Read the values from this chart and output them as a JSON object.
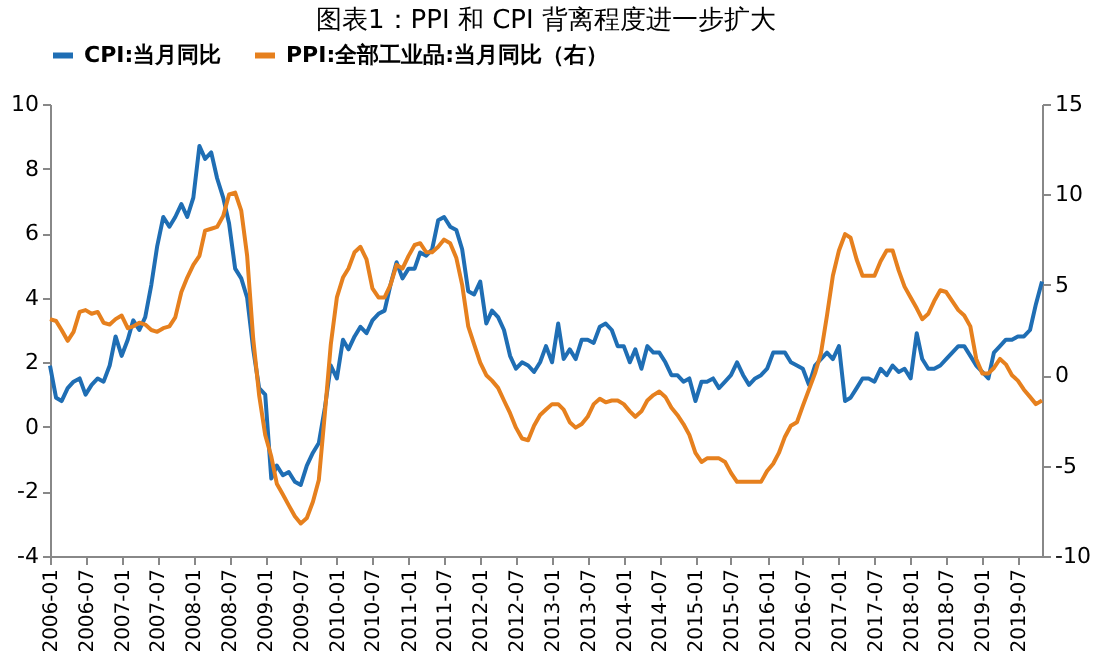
{
  "chart_data": {
    "type": "line",
    "title": "图表1：PPI 和 CPI 背离程度进一步扩大",
    "x": [
      "2006-01",
      "2006-02",
      "2006-03",
      "2006-04",
      "2006-05",
      "2006-06",
      "2006-07",
      "2006-08",
      "2006-09",
      "2006-10",
      "2006-11",
      "2006-12",
      "2007-01",
      "2007-02",
      "2007-03",
      "2007-04",
      "2007-05",
      "2007-06",
      "2007-07",
      "2007-08",
      "2007-09",
      "2007-10",
      "2007-11",
      "2007-12",
      "2008-01",
      "2008-02",
      "2008-03",
      "2008-04",
      "2008-05",
      "2008-06",
      "2008-07",
      "2008-08",
      "2008-09",
      "2008-10",
      "2008-11",
      "2008-12",
      "2009-01",
      "2009-02",
      "2009-03",
      "2009-04",
      "2009-05",
      "2009-06",
      "2009-07",
      "2009-08",
      "2009-09",
      "2009-10",
      "2009-11",
      "2009-12",
      "2010-01",
      "2010-02",
      "2010-03",
      "2010-04",
      "2010-05",
      "2010-06",
      "2010-07",
      "2010-08",
      "2010-09",
      "2010-10",
      "2010-11",
      "2010-12",
      "2011-01",
      "2011-02",
      "2011-03",
      "2011-04",
      "2011-05",
      "2011-06",
      "2011-07",
      "2011-08",
      "2011-09",
      "2011-10",
      "2011-11",
      "2011-12",
      "2012-01",
      "2012-02",
      "2012-03",
      "2012-04",
      "2012-05",
      "2012-06",
      "2012-07",
      "2012-08",
      "2012-09",
      "2012-10",
      "2012-11",
      "2012-12",
      "2013-01",
      "2013-02",
      "2013-03",
      "2013-04",
      "2013-05",
      "2013-06",
      "2013-07",
      "2013-08",
      "2013-09",
      "2013-10",
      "2013-11",
      "2013-12",
      "2014-01",
      "2014-02",
      "2014-03",
      "2014-04",
      "2014-05",
      "2014-06",
      "2014-07",
      "2014-08",
      "2014-09",
      "2014-10",
      "2014-11",
      "2014-12",
      "2015-01",
      "2015-02",
      "2015-03",
      "2015-04",
      "2015-05",
      "2015-06",
      "2015-07",
      "2015-08",
      "2015-09",
      "2015-10",
      "2015-11",
      "2015-12",
      "2016-01",
      "2016-02",
      "2016-03",
      "2016-04",
      "2016-05",
      "2016-06",
      "2016-07",
      "2016-08",
      "2016-09",
      "2016-10",
      "2016-11",
      "2016-12",
      "2017-01",
      "2017-02",
      "2017-03",
      "2017-04",
      "2017-05",
      "2017-06",
      "2017-07",
      "2017-08",
      "2017-09",
      "2017-10",
      "2017-11",
      "2017-12",
      "2018-01",
      "2018-02",
      "2018-03",
      "2018-04",
      "2018-05",
      "2018-06",
      "2018-07",
      "2018-08",
      "2018-09",
      "2018-10",
      "2018-11",
      "2018-12",
      "2019-01",
      "2019-02",
      "2019-03",
      "2019-04",
      "2019-05",
      "2019-06",
      "2019-07",
      "2019-08",
      "2019-09",
      "2019-10",
      "2019-11"
    ],
    "series": [
      {
        "name": "CPI:当月同比",
        "color": "#1f6eb4",
        "axis": "y",
        "values": [
          1.9,
          0.9,
          0.8,
          1.2,
          1.4,
          1.5,
          1.0,
          1.3,
          1.5,
          1.4,
          1.9,
          2.8,
          2.2,
          2.7,
          3.3,
          3.0,
          3.4,
          4.4,
          5.6,
          6.5,
          6.2,
          6.5,
          6.9,
          6.5,
          7.1,
          8.7,
          8.3,
          8.5,
          7.7,
          7.1,
          6.3,
          4.9,
          4.6,
          4.0,
          2.4,
          1.2,
          1.0,
          -1.6,
          -1.2,
          -1.5,
          -1.4,
          -1.7,
          -1.8,
          -1.2,
          -0.8,
          -0.5,
          0.6,
          1.9,
          1.5,
          2.7,
          2.4,
          2.8,
          3.1,
          2.9,
          3.3,
          3.5,
          3.6,
          4.4,
          5.1,
          4.6,
          4.9,
          4.9,
          5.4,
          5.3,
          5.5,
          6.4,
          6.5,
          6.2,
          6.1,
          5.5,
          4.2,
          4.1,
          4.5,
          3.2,
          3.6,
          3.4,
          3.0,
          2.2,
          1.8,
          2.0,
          1.9,
          1.7,
          2.0,
          2.5,
          2.0,
          3.2,
          2.1,
          2.4,
          2.1,
          2.7,
          2.7,
          2.6,
          3.1,
          3.2,
          3.0,
          2.5,
          2.5,
          2.0,
          2.4,
          1.8,
          2.5,
          2.3,
          2.3,
          2.0,
          1.6,
          1.6,
          1.4,
          1.5,
          0.8,
          1.4,
          1.4,
          1.5,
          1.2,
          1.4,
          1.6,
          2.0,
          1.6,
          1.3,
          1.5,
          1.6,
          1.8,
          2.3,
          2.3,
          2.3,
          2.0,
          1.9,
          1.8,
          1.3,
          1.9,
          2.1,
          2.3,
          2.1,
          2.5,
          0.8,
          0.9,
          1.2,
          1.5,
          1.5,
          1.4,
          1.8,
          1.6,
          1.9,
          1.7,
          1.8,
          1.5,
          2.9,
          2.1,
          1.8,
          1.8,
          1.9,
          2.1,
          2.3,
          2.5,
          2.5,
          2.2,
          1.9,
          1.7,
          1.5,
          2.3,
          2.5,
          2.7,
          2.7,
          2.8,
          2.8,
          3.0,
          3.8,
          4.5
        ]
      },
      {
        "name": "PPI:全部工业品:当月同比（右）",
        "color": "#e6801e",
        "axis": "y2",
        "values": [
          3.1,
          3.0,
          2.5,
          1.9,
          2.4,
          3.5,
          3.6,
          3.4,
          3.5,
          2.9,
          2.8,
          3.1,
          3.3,
          2.6,
          2.7,
          2.9,
          2.8,
          2.5,
          2.4,
          2.6,
          2.7,
          3.2,
          4.6,
          5.4,
          6.1,
          6.6,
          8.0,
          8.1,
          8.2,
          8.8,
          10.0,
          10.1,
          9.1,
          6.6,
          2.0,
          -1.1,
          -3.3,
          -4.5,
          -6.0,
          -6.6,
          -7.2,
          -7.8,
          -8.2,
          -7.9,
          -7.0,
          -5.8,
          -2.1,
          1.7,
          4.3,
          5.4,
          5.9,
          6.8,
          7.1,
          6.4,
          4.8,
          4.3,
          4.3,
          5.0,
          6.1,
          5.9,
          6.6,
          7.2,
          7.3,
          6.8,
          6.8,
          7.1,
          7.5,
          7.3,
          6.5,
          5.0,
          2.7,
          1.7,
          0.7,
          0.0,
          -0.3,
          -0.7,
          -1.4,
          -2.1,
          -2.9,
          -3.5,
          -3.6,
          -2.8,
          -2.2,
          -1.9,
          -1.6,
          -1.6,
          -1.9,
          -2.6,
          -2.9,
          -2.7,
          -2.3,
          -1.6,
          -1.3,
          -1.5,
          -1.4,
          -1.4,
          -1.6,
          -2.0,
          -2.3,
          -2.0,
          -1.4,
          -1.1,
          -0.9,
          -1.2,
          -1.8,
          -2.2,
          -2.7,
          -3.3,
          -4.3,
          -4.8,
          -4.6,
          -4.6,
          -4.6,
          -4.8,
          -5.4,
          -5.9,
          -5.9,
          -5.9,
          -5.9,
          -5.9,
          -5.3,
          -4.9,
          -4.3,
          -3.4,
          -2.8,
          -2.6,
          -1.7,
          -0.8,
          0.1,
          1.2,
          3.3,
          5.5,
          6.9,
          7.8,
          7.6,
          6.4,
          5.5,
          5.5,
          5.5,
          6.3,
          6.9,
          6.9,
          5.8,
          4.9,
          4.3,
          3.7,
          3.1,
          3.4,
          4.1,
          4.7,
          4.6,
          4.1,
          3.6,
          3.3,
          2.7,
          0.9,
          0.1,
          0.1,
          0.4,
          0.9,
          0.6,
          0.0,
          -0.3,
          -0.8,
          -1.2,
          -1.6,
          -1.4
        ]
      }
    ],
    "xlim": [
      "2006-01",
      "2019-11"
    ],
    "xticks": [
      "2006-01",
      "2006-07",
      "2007-01",
      "2007-07",
      "2008-01",
      "2008-07",
      "2009-01",
      "2009-07",
      "2010-01",
      "2010-07",
      "2011-01",
      "2011-07",
      "2012-01",
      "2012-07",
      "2013-01",
      "2013-07",
      "2014-01",
      "2014-07",
      "2015-01",
      "2015-07",
      "2016-01",
      "2016-07",
      "2017-01",
      "2017-07",
      "2018-01",
      "2018-07",
      "2019-01",
      "2019-07"
    ],
    "ylim": [
      -4,
      10
    ],
    "yticks": [
      -4,
      -2,
      0,
      2,
      4,
      6,
      8,
      10
    ],
    "y2lim": [
      -10,
      15
    ],
    "y2ticks": [
      -10,
      -5,
      0,
      5,
      10,
      15
    ],
    "grid": false,
    "legend": "top",
    "marker": "none",
    "line_style": "solid"
  }
}
